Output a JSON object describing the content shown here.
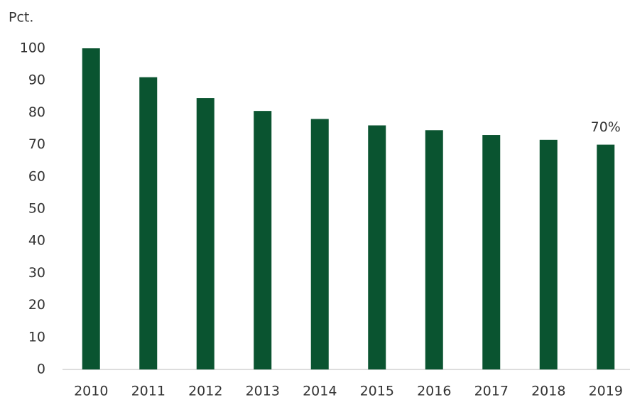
{
  "chart_data": {
    "type": "bar",
    "y_axis_label": "Pct.",
    "categories": [
      "2010",
      "2011",
      "2012",
      "2013",
      "2014",
      "2015",
      "2016",
      "2017",
      "2018",
      "2019"
    ],
    "values": [
      100,
      91,
      84.5,
      80.5,
      78,
      76,
      74.5,
      73,
      71.5,
      70
    ],
    "value_labels": [
      null,
      null,
      null,
      null,
      null,
      null,
      null,
      null,
      null,
      "70%"
    ],
    "color": "#0a5430",
    "ylim": [
      0,
      100
    ],
    "yticks": [
      0,
      10,
      20,
      30,
      40,
      50,
      60,
      70,
      80,
      90,
      100
    ],
    "grid": false
  }
}
